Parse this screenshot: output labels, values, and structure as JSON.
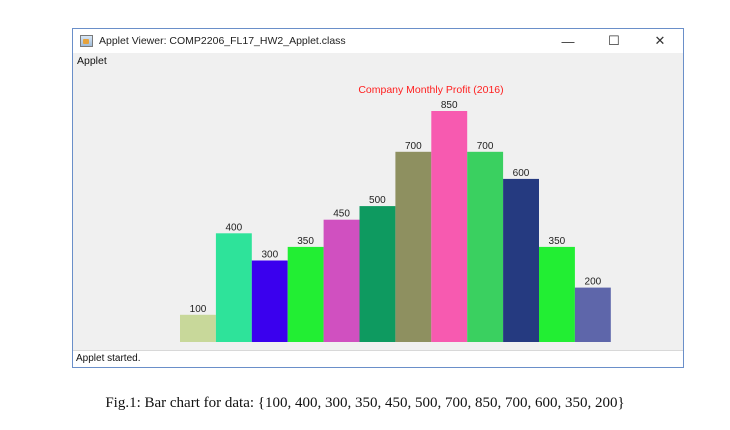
{
  "window": {
    "title": "Applet Viewer: COMP2206_FL17_HW2_Applet.class",
    "menu_label": "Applet",
    "controls": {
      "minimize": "—",
      "maximize": "☐",
      "close": "✕"
    },
    "status": "Applet started."
  },
  "caption": "Fig.1: Bar chart for data: {100, 400, 300, 350, 450, 500, 700, 850, 700, 600, 350, 200}",
  "chart_data": {
    "type": "bar",
    "title": "Company Monthly Profit (2016)",
    "title_color": "#ff2020",
    "ylim": [
      0,
      850
    ],
    "values": [
      100,
      400,
      300,
      350,
      450,
      500,
      700,
      850,
      700,
      600,
      350,
      200
    ],
    "labels": [
      "100",
      "400",
      "300",
      "350",
      "450",
      "500",
      "700",
      "850",
      "700",
      "600",
      "350",
      "200"
    ],
    "colors": [
      "#c8d89a",
      "#2ee39a",
      "#3a00ee",
      "#22ee33",
      "#d050c0",
      "#0e9a60",
      "#8e9060",
      "#f75ab0",
      "#3ad060",
      "#253a80",
      "#22ee33",
      "#5e66aa"
    ]
  }
}
